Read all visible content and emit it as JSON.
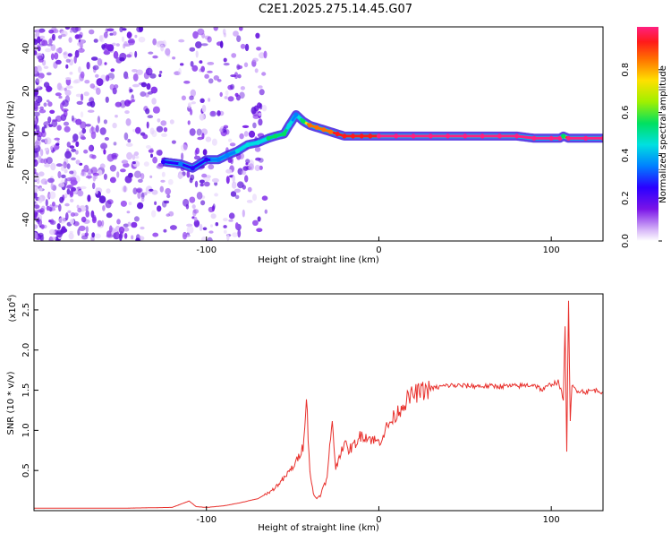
{
  "title": "C2E1.2025.275.14.45.G07",
  "colors": {
    "line": "#e8302c",
    "ridge_low": "#5500cc",
    "ridge_high": "#ff1a1a",
    "axis": "#000000"
  },
  "chart_data": [
    {
      "type": "heatmap",
      "title": "C2E1.2025.275.14.45.G07",
      "xlabel": "Height of straight line (km)",
      "ylabel": "Frequency (Hz)",
      "xlim": [
        -200,
        130
      ],
      "ylim": [
        -50,
        50
      ],
      "x_ticks": [
        -100,
        0,
        100
      ],
      "y_ticks": [
        -40,
        -20,
        0,
        20,
        40
      ],
      "colorbar": {
        "label": "Normalized spectral amplitude",
        "range": [
          0,
          1
        ],
        "ticks": [
          "0.0",
          "0.2",
          "0.4",
          "0.6",
          "0.8"
        ],
        "tick_values": [
          0.0,
          0.2,
          0.4,
          0.6,
          0.8
        ]
      },
      "ridge": {
        "x": [
          -125,
          -115,
          -108,
          -100,
          -93,
          -88,
          -82,
          -76,
          -70,
          -64,
          -60,
          -55,
          -52,
          -48,
          -44,
          -40,
          -36,
          -32,
          -28,
          -24,
          -20,
          -15,
          -10,
          -5,
          0,
          10,
          20,
          30,
          40,
          50,
          60,
          70,
          80,
          90,
          100,
          105,
          107,
          110,
          120,
          130
        ],
        "freq": [
          -13,
          -14,
          -16,
          -12,
          -12,
          -10,
          -8,
          -5,
          -4,
          -2,
          -1,
          0,
          4,
          9,
          6,
          4,
          3,
          2,
          1,
          0,
          -1,
          -1,
          -1,
          -1,
          -1,
          -1,
          -1,
          -1,
          -1,
          -1,
          -1,
          -1,
          -1,
          -2,
          -2,
          -2,
          -1,
          -2,
          -2,
          -2
        ],
        "amp": [
          0.3,
          0.35,
          0.3,
          0.3,
          0.4,
          0.4,
          0.45,
          0.5,
          0.5,
          0.55,
          0.55,
          0.6,
          0.5,
          0.4,
          0.6,
          0.9,
          0.85,
          0.9,
          0.9,
          0.95,
          0.95,
          0.95,
          0.95,
          0.95,
          1.0,
          1.0,
          1.0,
          1.0,
          1.0,
          1.0,
          1.0,
          1.0,
          1.0,
          1.0,
          1.0,
          1.0,
          0.6,
          1.0,
          1.0,
          1.0
        ]
      }
    },
    {
      "type": "line",
      "xlabel": "Height of straight line (km)",
      "ylabel": "SNR (10 * v/v)",
      "y_multiplier": "(x10^4)",
      "multiplier_base": "(x10",
      "multiplier_exp": "4",
      "xlim": [
        -200,
        130
      ],
      "ylim": [
        0,
        2.7
      ],
      "x_ticks": [
        -100,
        0,
        100
      ],
      "y_ticks": [
        0.5,
        1.0,
        1.5,
        2.0,
        2.5
      ],
      "y_tick_labels": [
        "0.5",
        "1.0",
        "1.5",
        "2.0",
        "2.5"
      ],
      "series": [
        {
          "name": "SNR",
          "x": [
            -200,
            -150,
            -120,
            -110,
            -106,
            -100,
            -90,
            -80,
            -70,
            -62,
            -55,
            -48,
            -44,
            -42,
            -40,
            -38,
            -36,
            -34,
            -30,
            -27,
            -25,
            -24,
            -22,
            -20,
            -18,
            -15,
            -10,
            -5,
            0,
            5,
            10,
            15,
            20,
            30,
            40,
            60,
            80,
            90,
            95,
            100,
            104,
            107,
            108,
            109,
            110,
            111,
            112,
            115,
            120,
            125,
            130
          ],
          "y": [
            0.03,
            0.03,
            0.04,
            0.12,
            0.05,
            0.04,
            0.06,
            0.1,
            0.15,
            0.25,
            0.4,
            0.6,
            0.8,
            1.4,
            0.5,
            0.2,
            0.15,
            0.2,
            0.4,
            1.15,
            0.5,
            0.6,
            0.75,
            0.85,
            0.75,
            0.8,
            0.95,
            0.9,
            0.85,
            1.05,
            1.2,
            1.35,
            1.45,
            1.52,
            1.56,
            1.55,
            1.55,
            1.57,
            1.5,
            1.58,
            1.6,
            1.4,
            2.25,
            0.75,
            2.65,
            1.1,
            1.55,
            1.5,
            1.48,
            1.5,
            1.48
          ]
        }
      ]
    }
  ]
}
